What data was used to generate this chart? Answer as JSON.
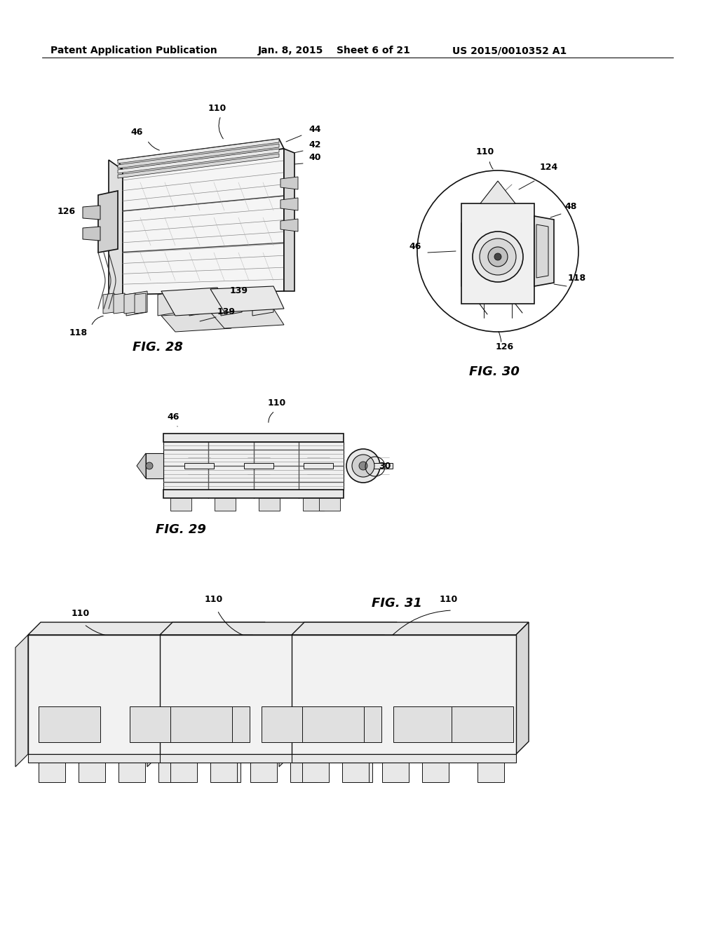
{
  "background_color": "#ffffff",
  "header_text": "Patent Application Publication",
  "header_date": "Jan. 8, 2015",
  "header_sheet": "Sheet 6 of 21",
  "header_patent": "US 2015/0010352 A1",
  "fig28_label": "FIG. 28",
  "fig29_label": "FIG. 29",
  "fig30_label": "FIG. 30",
  "fig31_label": "FIG. 31",
  "text_color": "#000000",
  "line_color": "#111111",
  "lw_main": 1.2,
  "lw_detail": 0.7,
  "lw_thin": 0.4
}
